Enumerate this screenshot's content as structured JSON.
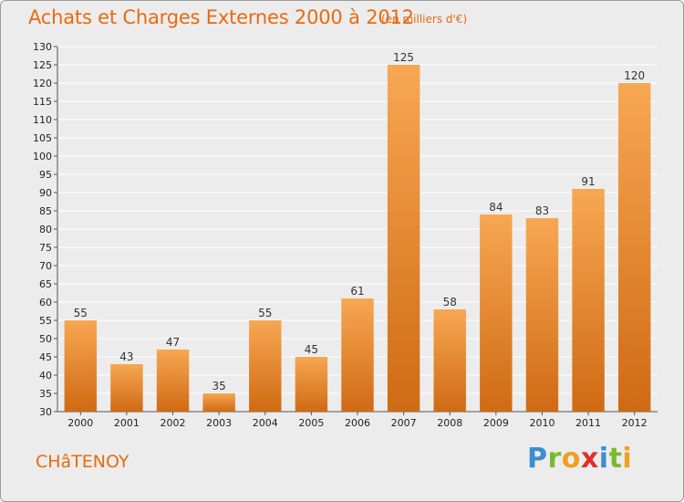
{
  "header": {
    "title": "Achats et Charges Externes 2000 à 2012",
    "subtitle": "(en milliers d'€)"
  },
  "footer": {
    "place": "CHâTENOY",
    "logo_letters": [
      {
        "char": "P",
        "color": "#3a8fd0"
      },
      {
        "char": "r",
        "color": "#7cb82f"
      },
      {
        "char": "o",
        "color": "#f0a020"
      },
      {
        "char": "x",
        "color": "#e0302a"
      },
      {
        "char": "i",
        "color": "#3a8fd0"
      },
      {
        "char": "t",
        "color": "#7cb82f"
      },
      {
        "char": "i",
        "color": "#f0a020"
      }
    ]
  },
  "colors": {
    "accent": "#e86a10",
    "bar_top": "#f7a752",
    "bar_bottom": "#d06a14",
    "grid": "#ffffff",
    "plot_bg": "#ececec"
  },
  "chart_data": {
    "type": "bar",
    "title": "Achats et Charges Externes 2000 à 2012",
    "subtitle": "(en milliers d'€)",
    "xlabel": "",
    "ylabel": "",
    "categories": [
      "2000",
      "2001",
      "2002",
      "2003",
      "2004",
      "2005",
      "2006",
      "2007",
      "2008",
      "2009",
      "2010",
      "2011",
      "2012"
    ],
    "values": [
      55,
      43,
      47,
      35,
      55,
      45,
      61,
      125,
      58,
      84,
      83,
      91,
      120
    ],
    "ylim": [
      30,
      130
    ],
    "yticks": [
      30,
      35,
      40,
      45,
      50,
      55,
      60,
      65,
      70,
      75,
      80,
      85,
      90,
      95,
      100,
      105,
      110,
      115,
      120,
      125,
      130
    ],
    "grid": true,
    "legend": "none"
  }
}
